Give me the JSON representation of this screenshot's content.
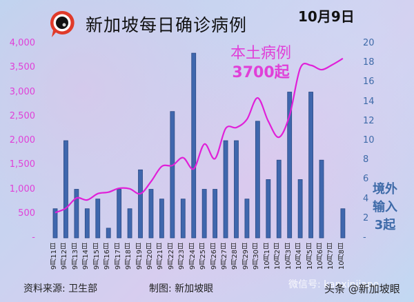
{
  "header": {
    "title": "新加坡每日确诊病例",
    "date": "10月9日",
    "logo_label": "新加坡眼"
  },
  "annotations": {
    "local_line1": "本土病例",
    "local_line2": "3700起",
    "import_line1": "境外",
    "import_line2": "输入",
    "import_line3": "3起"
  },
  "footer": {
    "source": "资料来源:  卫生部",
    "made_by": "制图:  新加坡眼",
    "watermark": "微信号: kanxinjiapo",
    "watermark2": "头条 @新加坡眼"
  },
  "colors": {
    "line": "#e020d8",
    "bar": "#3f67ad",
    "bar_edge": "#2b4a85",
    "left_axis": "#e040d8",
    "right_axis": "#3e6aa8"
  },
  "chart_data": {
    "type": "bar+line",
    "title": "新加坡每日确诊病例",
    "categories": [
      "9月11日",
      "9月12日",
      "9月13日",
      "9月14日",
      "9月15日",
      "9月16日",
      "9月17日",
      "9月18日",
      "9月19日",
      "9月20日",
      "9月21日",
      "9月22日",
      "9月23日",
      "9月24日",
      "9月25日",
      "9月26日",
      "9月27日",
      "9月28日",
      "9月29日",
      "9月30日",
      "10月1日",
      "10月2日",
      "10月3日",
      "10月4日",
      "10月5日",
      "10月6日",
      "10月7日",
      "10月8日"
    ],
    "series": [
      {
        "name": "本土病例",
        "type": "line",
        "axis": "left",
        "values": [
          520,
          610,
          820,
          780,
          910,
          940,
          1020,
          1010,
          910,
          1160,
          1470,
          1490,
          1650,
          1420,
          1930,
          1630,
          2250,
          2270,
          2440,
          2880,
          2400,
          2070,
          2520,
          3490,
          3550,
          3460,
          3560,
          3690
        ]
      },
      {
        "name": "境外输入",
        "type": "bar",
        "axis": "right",
        "values": [
          3,
          10,
          5,
          3,
          4,
          1,
          5,
          3,
          7,
          5,
          4,
          13,
          4,
          19,
          5,
          5,
          10,
          10,
          4,
          12,
          6,
          8,
          15,
          6,
          15,
          8,
          0,
          3
        ]
      }
    ],
    "left_axis": {
      "ticks": [
        "-",
        "500",
        "1,000",
        "1,500",
        "2,000",
        "2,500",
        "3,000",
        "3,500",
        "4,000"
      ],
      "ylim": [
        0,
        4000
      ]
    },
    "right_axis": {
      "ticks": [
        "-",
        "2",
        "4",
        "6",
        "8",
        "10",
        "12",
        "14",
        "16",
        "18",
        "20"
      ],
      "ylim": [
        0,
        20
      ]
    },
    "grid": false,
    "legend": "inline annotations"
  }
}
